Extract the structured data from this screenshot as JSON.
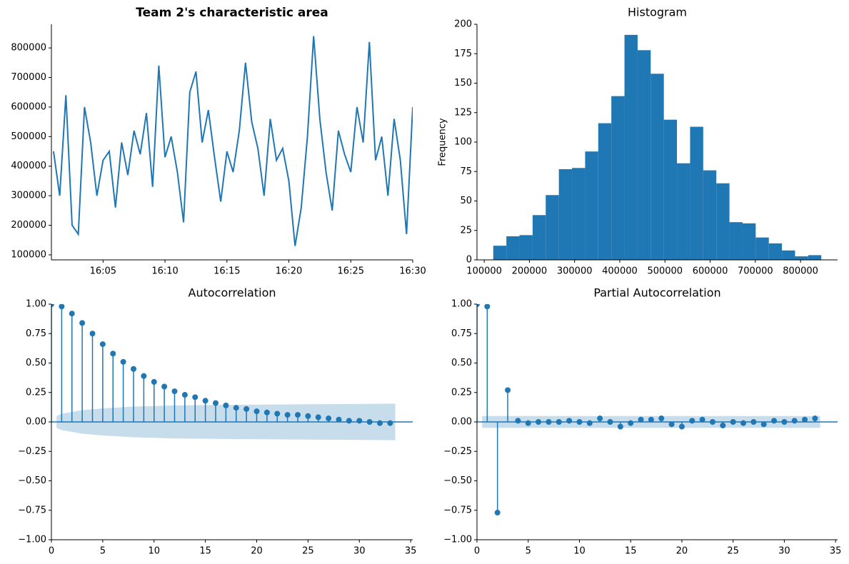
{
  "chart_data": [
    {
      "type": "line",
      "title": "Team 2's characteristic area",
      "color": "#1f77b4",
      "x": [
        1.0,
        1.5,
        2.0,
        2.5,
        3.0,
        3.5,
        4.0,
        4.5,
        5.0,
        5.5,
        6.0,
        6.5,
        7.0,
        7.5,
        8.0,
        8.5,
        9.0,
        9.5,
        10.0,
        10.5,
        11.0,
        11.5,
        12.0,
        12.5,
        13.0,
        13.5,
        14.0,
        14.5,
        15.0,
        15.5,
        16.0,
        16.5,
        17.0,
        17.5,
        18.0,
        18.5,
        19.0,
        19.5,
        20.0,
        20.5,
        21.0,
        21.5,
        22.0,
        22.5,
        23.0,
        23.5,
        24.0,
        24.5,
        25.0,
        25.5,
        26.0,
        26.5,
        27.0,
        27.5,
        28.0,
        28.5,
        29.0,
        29.5,
        30.0
      ],
      "values": [
        450000,
        300000,
        640000,
        200000,
        170000,
        600000,
        480000,
        300000,
        420000,
        450000,
        260000,
        480000,
        370000,
        520000,
        440000,
        580000,
        330000,
        740000,
        430000,
        500000,
        380000,
        210000,
        650000,
        720000,
        480000,
        590000,
        430000,
        280000,
        450000,
        380000,
        520000,
        750000,
        550000,
        460000,
        300000,
        560000,
        420000,
        460000,
        350000,
        130000,
        260000,
        500000,
        840000,
        560000,
        380000,
        250000,
        520000,
        440000,
        380000,
        600000,
        480000,
        820000,
        420000,
        500000,
        300000,
        560000,
        420000,
        170000,
        600000
      ],
      "xlim": [
        0.83,
        30
      ],
      "ylim": [
        83000,
        880000
      ],
      "xticks": [
        {
          "value": 5,
          "label": "16:05"
        },
        {
          "value": 10,
          "label": "16:10"
        },
        {
          "value": 15,
          "label": "16:15"
        },
        {
          "value": 20,
          "label": "16:20"
        },
        {
          "value": 25,
          "label": "16:25"
        },
        {
          "value": 30,
          "label": "16:30"
        }
      ],
      "yticks": [
        100000,
        200000,
        300000,
        400000,
        500000,
        600000,
        700000,
        800000
      ]
    },
    {
      "type": "histogram",
      "title": "Histogram",
      "y_label": "Frequency",
      "color": "#1f77b4",
      "bins": [
        120000,
        149040,
        178080,
        207120,
        236160,
        265200,
        294240,
        323280,
        352320,
        381360,
        410400,
        439440,
        468480,
        497520,
        526560,
        555600,
        584640,
        613680,
        642720,
        671760,
        700800,
        729840,
        758880,
        787920,
        816960,
        846000
      ],
      "values": [
        12,
        20,
        21,
        38,
        55,
        77,
        78,
        92,
        116,
        139,
        191,
        178,
        158,
        119,
        82,
        113,
        76,
        65,
        32,
        31,
        19,
        14,
        8,
        3,
        4
      ],
      "xlim": [
        84000,
        882000
      ],
      "ylim": [
        0,
        200
      ],
      "xticks": [
        100000,
        200000,
        300000,
        400000,
        500000,
        600000,
        700000,
        800000
      ],
      "yticks": [
        0,
        25,
        50,
        75,
        100,
        125,
        150,
        175,
        200
      ]
    },
    {
      "type": "stem",
      "title": "Autocorrelation",
      "color": "#1f77b4",
      "x": [
        0,
        1,
        2,
        3,
        4,
        5,
        6,
        7,
        8,
        9,
        10,
        11,
        12,
        13,
        14,
        15,
        16,
        17,
        18,
        19,
        20,
        21,
        22,
        23,
        24,
        25,
        26,
        27,
        28,
        29,
        30,
        31,
        32,
        33
      ],
      "values": [
        1,
        0.98,
        0.92,
        0.84,
        0.75,
        0.66,
        0.58,
        0.51,
        0.45,
        0.39,
        0.34,
        0.3,
        0.26,
        0.23,
        0.21,
        0.18,
        0.16,
        0.14,
        0.12,
        0.11,
        0.09,
        0.08,
        0.07,
        0.06,
        0.06,
        0.05,
        0.04,
        0.03,
        0.02,
        0.01,
        0.01,
        0.0,
        -0.01,
        -0.01
      ],
      "band": {
        "x": [
          0.5,
          1,
          2,
          3,
          5,
          8,
          12,
          17,
          25,
          33.5
        ],
        "values": [
          0.05,
          0.07,
          0.085,
          0.1,
          0.115,
          0.13,
          0.14,
          0.145,
          0.15,
          0.155
        ]
      },
      "xlim": [
        0,
        35.2
      ],
      "ylim": [
        -1,
        1
      ],
      "xticks": [
        0,
        5,
        10,
        15,
        20,
        25,
        30,
        35
      ],
      "yticks": [
        {
          "value": -1,
          "label": "−1.00"
        },
        {
          "value": -0.75,
          "label": "−0.75"
        },
        {
          "value": -0.5,
          "label": "−0.50"
        },
        {
          "value": -0.25,
          "label": "−0.25"
        },
        {
          "value": 0,
          "label": "0.00"
        },
        {
          "value": 0.25,
          "label": "0.25"
        },
        {
          "value": 0.5,
          "label": "0.50"
        },
        {
          "value": 0.75,
          "label": "0.75"
        },
        {
          "value": 1,
          "label": "1.00"
        }
      ]
    },
    {
      "type": "stem",
      "title": "Partial Autocorrelation",
      "color": "#1f77b4",
      "x": [
        0,
        1,
        2,
        3,
        4,
        5,
        6,
        7,
        8,
        9,
        10,
        11,
        12,
        13,
        14,
        15,
        16,
        17,
        18,
        19,
        20,
        21,
        22,
        23,
        24,
        25,
        26,
        27,
        28,
        29,
        30,
        31,
        32,
        33
      ],
      "values": [
        1,
        0.98,
        -0.77,
        0.27,
        0.01,
        -0.01,
        0.0,
        0.0,
        0.0,
        0.01,
        0.0,
        -0.01,
        0.03,
        0.0,
        -0.04,
        -0.01,
        0.02,
        0.02,
        0.03,
        -0.02,
        -0.04,
        0.01,
        0.02,
        0.0,
        -0.03,
        0.0,
        -0.01,
        0.0,
        -0.02,
        0.01,
        0.0,
        0.01,
        0.02,
        0.03
      ],
      "band": {
        "x": [
          0.5,
          33.5
        ],
        "values": [
          0.05,
          0.05
        ]
      },
      "xlim": [
        0,
        35.2
      ],
      "ylim": [
        -1,
        1
      ],
      "xticks": [
        0,
        5,
        10,
        15,
        20,
        25,
        30,
        35
      ],
      "yticks": [
        {
          "value": -1,
          "label": "−1.00"
        },
        {
          "value": -0.75,
          "label": "−0.75"
        },
        {
          "value": -0.5,
          "label": "−0.50"
        },
        {
          "value": -0.25,
          "label": "−0.25"
        },
        {
          "value": 0,
          "label": "0.00"
        },
        {
          "value": 0.25,
          "label": "0.25"
        },
        {
          "value": 0.5,
          "label": "0.50"
        },
        {
          "value": 0.75,
          "label": "0.75"
        },
        {
          "value": 1,
          "label": "1.00"
        }
      ]
    }
  ]
}
